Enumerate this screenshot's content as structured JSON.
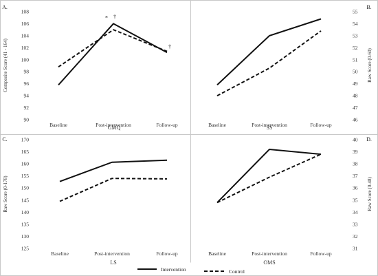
{
  "colors": {
    "series": "#111111",
    "frame": "#c8c8c8",
    "text": "#333333"
  },
  "legend": {
    "placement": "bottom-center",
    "items": [
      "Intervention",
      "Control"
    ]
  },
  "chart_data": [
    {
      "type": "line",
      "panel": "A.",
      "title": "GMQ",
      "ylabel": "Composite Score (41 - 164)",
      "y_axis_side": "left",
      "categories": [
        "Baseline",
        "Post-intervention",
        "Follow-up"
      ],
      "ylim": [
        90,
        108
      ],
      "yticks": [
        90,
        92,
        94,
        96,
        98,
        100,
        102,
        104,
        106,
        108
      ],
      "series": [
        {
          "name": "Intervention",
          "style": "solid",
          "values": [
            95.8,
            106.0,
            101.2
          ]
        },
        {
          "name": "Control",
          "style": "dashed",
          "values": [
            98.8,
            105.0,
            101.4
          ]
        }
      ],
      "annotations": [
        {
          "text": "*",
          "category": "Post-intervention",
          "y": 107.0
        },
        {
          "text": "†",
          "category": "Post-intervention",
          "y": 107.2
        },
        {
          "text": "†",
          "category": "Follow-up",
          "y": 102.2
        }
      ]
    },
    {
      "type": "line",
      "panel": "B.",
      "title": "SS",
      "ylabel": "Raw Score (0-60)",
      "y_axis_side": "right",
      "categories": [
        "Baseline",
        "Post-intervention",
        "Follow-up"
      ],
      "ylim": [
        46,
        55
      ],
      "yticks": [
        46,
        47,
        48,
        49,
        50,
        51,
        52,
        53,
        54,
        55
      ],
      "series": [
        {
          "name": "Intervention",
          "style": "solid",
          "values": [
            48.9,
            53.0,
            54.4
          ]
        },
        {
          "name": "Control",
          "style": "dashed",
          "values": [
            48.0,
            50.3,
            53.4
          ]
        }
      ],
      "annotations": []
    },
    {
      "type": "line",
      "panel": "C.",
      "title": "LS",
      "ylabel": "Raw Score (0-178)",
      "y_axis_side": "left",
      "categories": [
        "Baseline",
        "Post-intervention",
        "Follow-up"
      ],
      "ylim": [
        125,
        170
      ],
      "yticks": [
        125,
        130,
        135,
        140,
        145,
        150,
        155,
        160,
        165,
        170
      ],
      "series": [
        {
          "name": "Intervention",
          "style": "solid",
          "values": [
            152.7,
            160.7,
            161.5
          ]
        },
        {
          "name": "Control",
          "style": "dashed",
          "values": [
            144.5,
            154.0,
            153.8
          ]
        }
      ],
      "annotations": []
    },
    {
      "type": "line",
      "panel": "D.",
      "title": "OMS",
      "ylabel": "Raw Score (0-48)",
      "y_axis_side": "right",
      "categories": [
        "Baseline",
        "Post-intervention",
        "Follow-up"
      ],
      "ylim": [
        31,
        40
      ],
      "yticks": [
        31,
        32,
        33,
        34,
        35,
        36,
        37,
        38,
        39,
        40
      ],
      "series": [
        {
          "name": "Intervention",
          "style": "solid",
          "values": [
            34.8,
            39.2,
            38.8
          ]
        },
        {
          "name": "Control",
          "style": "dashed",
          "values": [
            34.8,
            36.9,
            38.8
          ]
        }
      ],
      "annotations": []
    }
  ]
}
